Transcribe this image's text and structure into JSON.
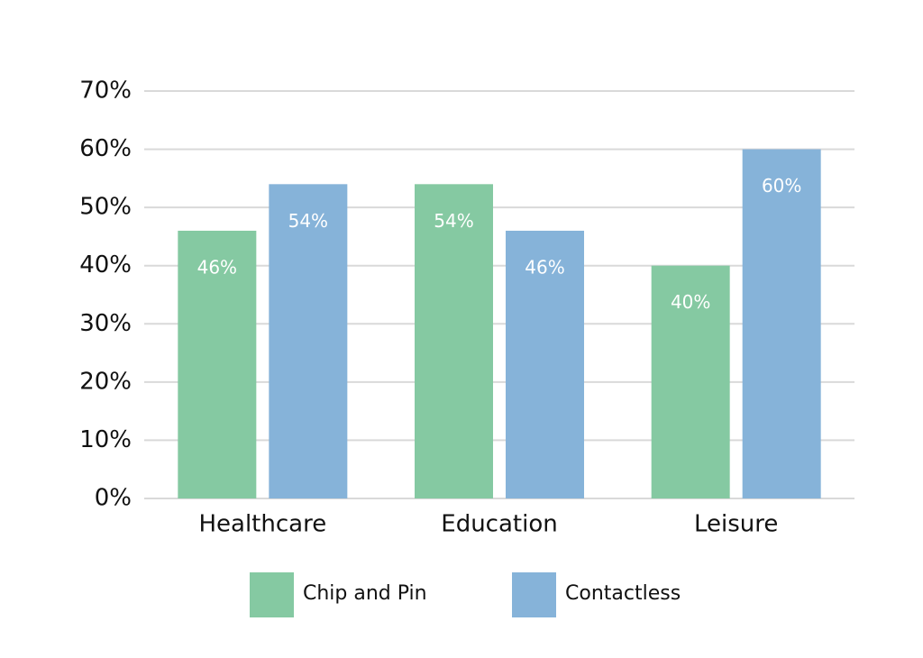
{
  "chart_data": {
    "type": "bar",
    "categories": [
      "Healthcare",
      "Education",
      "Leisure"
    ],
    "series": [
      {
        "name": "Chip and Pin",
        "color": "#85c9a2",
        "values": [
          46,
          54,
          40
        ],
        "value_labels": [
          "46%",
          "54%",
          "40%"
        ]
      },
      {
        "name": "Contactless",
        "color": "#86b3d9",
        "values": [
          54,
          46,
          60
        ],
        "value_labels": [
          "54%",
          "46%",
          "60%"
        ]
      }
    ],
    "ylim": [
      0,
      70
    ],
    "yticks": [
      {
        "value": 0,
        "label": "0%"
      },
      {
        "value": 10,
        "label": "10%"
      },
      {
        "value": 20,
        "label": "20%"
      },
      {
        "value": 30,
        "label": "30%"
      },
      {
        "value": 40,
        "label": "40%"
      },
      {
        "value": 50,
        "label": "50%"
      },
      {
        "value": 60,
        "label": "60%"
      },
      {
        "value": 70,
        "label": "70%"
      }
    ],
    "grid": true
  }
}
